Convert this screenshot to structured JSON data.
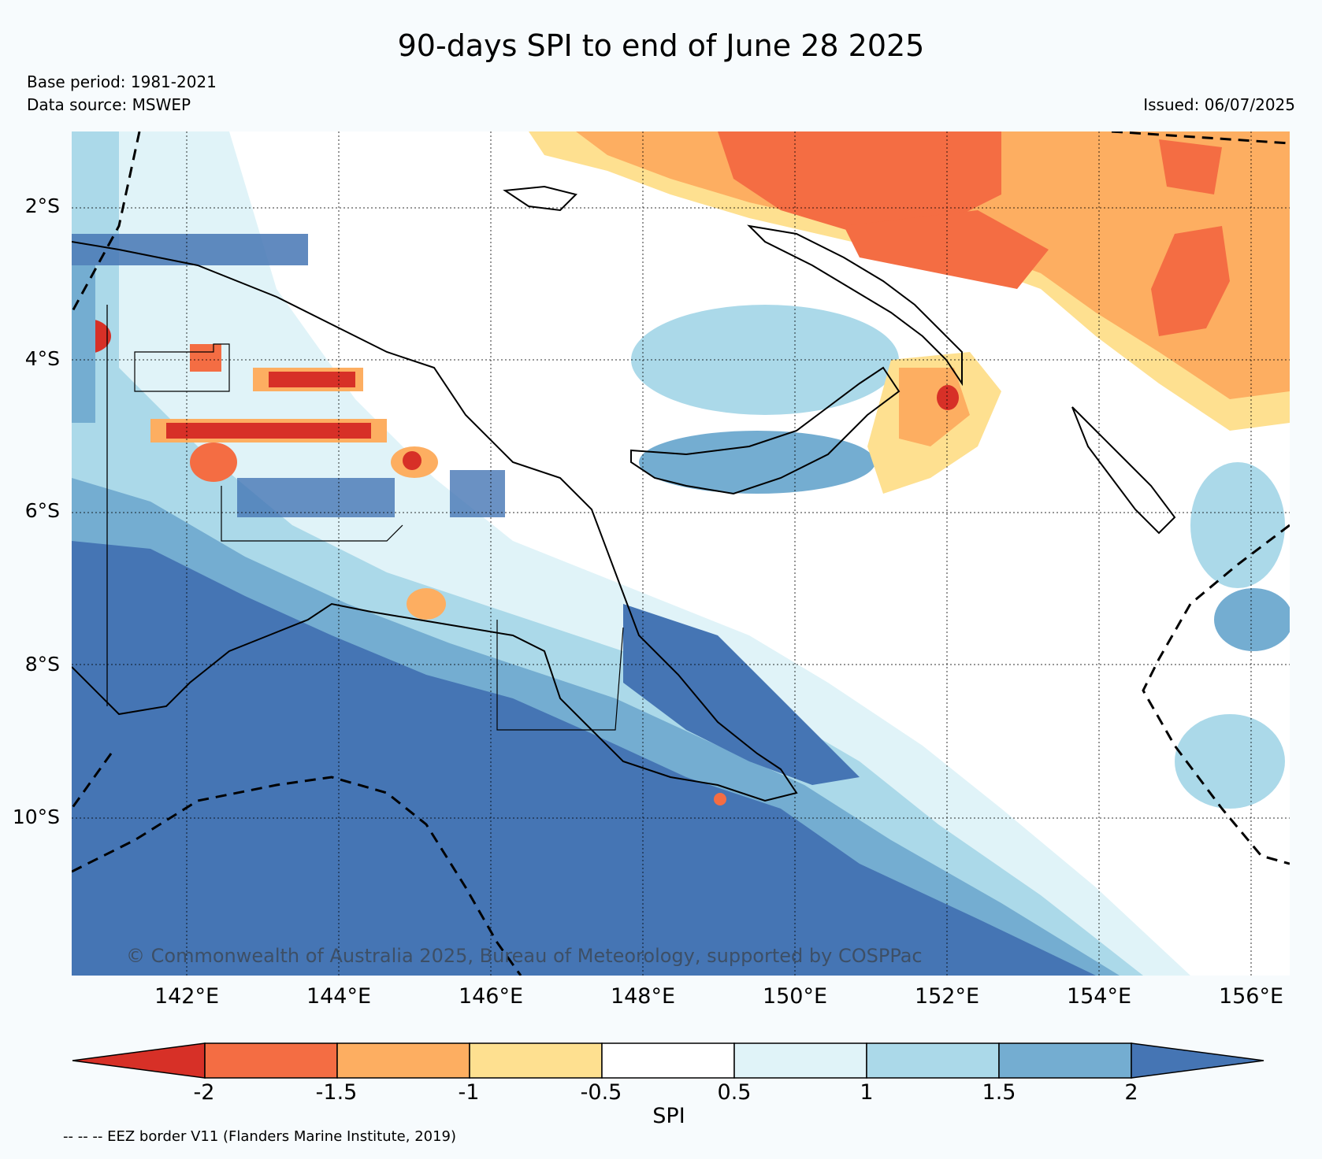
{
  "title": "90-days SPI to end of June 28 2025",
  "base_period": "Base period: 1981-2021",
  "data_source": "Data source: MSWEP",
  "issued": "Issued: 06/07/2025",
  "copyright": "© Commonwealth of Australia 2025, Bureau of Meteorology, supported by COSPPac",
  "lat_labels": [
    "2°S",
    "4°S",
    "6°S",
    "8°S",
    "10°S"
  ],
  "lon_labels": [
    "142°E",
    "144°E",
    "146°E",
    "148°E",
    "150°E",
    "152°E",
    "154°E",
    "156°E"
  ],
  "colorbar": {
    "title": "SPI",
    "ticks": [
      "-2",
      "-1.5",
      "-1",
      "-0.5",
      "0.5",
      "1",
      "1.5",
      "2"
    ],
    "colors": [
      "#d73027",
      "#f46d43",
      "#fdae61",
      "#fee090",
      "#ffffff",
      "#e0f3f8",
      "#abd9e9",
      "#74add1",
      "#4575b4"
    ]
  },
  "eez_note": "-- -- -- EEZ border V11 (Flanders Marine Institute, 2019)"
}
